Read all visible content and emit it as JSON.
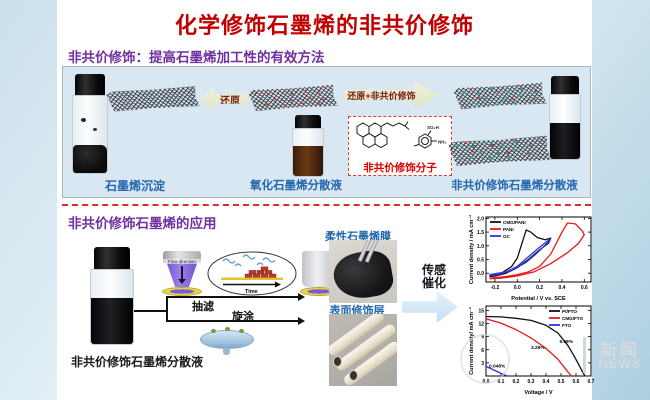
{
  "title": "化学修饰石墨烯的非共价修饰",
  "section1": {
    "heading": "非共价修饰：提高石墨烯加工性的有效方法",
    "arrow_left_label": "还原",
    "arrow_right_label": "还原+非共价修饰",
    "molecule_box_label": "非共价修饰分子",
    "molecule_labels": [
      "SO₃H",
      "NH₂"
    ],
    "caption_graphene_precipitate": "石墨烯沉淀",
    "caption_go_dispersion": "氧化石墨烯分散液",
    "caption_modified_dispersion": "非共价修饰石墨烯分散液"
  },
  "section2": {
    "heading": "非共价修饰石墨烯的应用",
    "caption_dispersion": "非共价修饰石墨烯分散液",
    "flow_direction_label": "Flow direction",
    "time_label": "Time",
    "filtration_label": "抽滤",
    "spincoat_label": "旋涂",
    "film_label": "柔性石墨烯膜",
    "surface_label": "表面修饰层",
    "arrow_label_line1": "传感",
    "arrow_label_line2": "催化"
  },
  "watermark": {
    "cn": "新闻",
    "en": "NEWS"
  },
  "colors": {
    "title_red": "#c00000",
    "heading_purple": "#7030a0",
    "caption_blue": "#2367ae",
    "molecule_red": "#e00000",
    "arrow_text_maroon": "#7a1d12",
    "panel_blue": "#d8e7f1",
    "separator_red": "#e02b2b",
    "chart_black": "#111111",
    "chart_red": "#e8191c",
    "chart_blue": "#2b35d8"
  },
  "chart_data": [
    {
      "type": "line",
      "xlabel": "Potential / V vs. SCE",
      "ylabel": "Current density / mA cm⁻²",
      "xlim": [
        -0.28,
        0.66
      ],
      "ylim": [
        -0.32,
        2.05
      ],
      "xticks": [
        -0.2,
        0.0,
        0.2,
        0.4,
        0.6
      ],
      "xtick_labels": [
        "-0.2",
        "0.0",
        "0.2",
        "0.4",
        "0.6"
      ],
      "yticks": [
        0.0,
        0.5,
        1.0,
        1.5,
        2.0
      ],
      "ytick_labels": [
        "0.0",
        "0.5",
        "1.0",
        "1.5",
        "2.0"
      ],
      "grid": false,
      "legend_pos": "tl",
      "series": [
        {
          "name": "CMG/PANI",
          "color": "#111111",
          "points": [
            [
              -0.25,
              -0.08
            ],
            [
              -0.15,
              -0.02
            ],
            [
              -0.05,
              0.25
            ],
            [
              0.0,
              0.55
            ],
            [
              0.05,
              1.2
            ],
            [
              0.08,
              1.58
            ],
            [
              0.12,
              1.5
            ],
            [
              0.18,
              1.3
            ],
            [
              0.25,
              1.22
            ],
            [
              0.3,
              1.28
            ],
            [
              0.28,
              1.1
            ],
            [
              0.2,
              0.85
            ],
            [
              0.1,
              0.5
            ],
            [
              0.0,
              0.2
            ],
            [
              -0.1,
              0.0
            ],
            [
              -0.2,
              -0.1
            ],
            [
              -0.25,
              -0.12
            ]
          ]
        },
        {
          "name": "PANI",
          "color": "#e8191c",
          "points": [
            [
              -0.25,
              -0.18
            ],
            [
              -0.1,
              -0.12
            ],
            [
              0.0,
              -0.05
            ],
            [
              0.1,
              0.05
            ],
            [
              0.2,
              0.25
            ],
            [
              0.3,
              0.7
            ],
            [
              0.4,
              1.5
            ],
            [
              0.45,
              1.83
            ],
            [
              0.52,
              1.8
            ],
            [
              0.58,
              1.55
            ],
            [
              0.6,
              1.4
            ],
            [
              0.55,
              1.1
            ],
            [
              0.45,
              0.75
            ],
            [
              0.3,
              0.35
            ],
            [
              0.15,
              0.05
            ],
            [
              0.0,
              -0.1
            ],
            [
              -0.15,
              -0.18
            ],
            [
              -0.25,
              -0.2
            ]
          ]
        },
        {
          "name": "GC",
          "color": "#2b35d8",
          "points": [
            [
              -0.25,
              -0.05
            ],
            [
              -0.1,
              0.05
            ],
            [
              0.0,
              0.25
            ],
            [
              0.1,
              0.6
            ],
            [
              0.2,
              0.95
            ],
            [
              0.3,
              1.27
            ],
            [
              0.28,
              1.15
            ],
            [
              0.18,
              0.75
            ],
            [
              0.08,
              0.4
            ],
            [
              -0.05,
              0.1
            ],
            [
              -0.18,
              -0.05
            ],
            [
              -0.25,
              -0.08
            ]
          ]
        }
      ],
      "annotations": []
    },
    {
      "type": "line",
      "xlabel": "Voltage / V",
      "ylabel": "Current density/ mA cm⁻²",
      "xlim": [
        0.0,
        0.7
      ],
      "ylim": [
        0,
        16
      ],
      "xticks": [
        0.0,
        0.1,
        0.2,
        0.3,
        0.4,
        0.5,
        0.6,
        0.7
      ],
      "xtick_labels": [
        "0.0",
        "0.1",
        "0.2",
        "0.3",
        "0.4",
        "0.5",
        "0.6",
        "0.7"
      ],
      "yticks": [
        3,
        6,
        9,
        12,
        15
      ],
      "ytick_labels": [
        "3",
        "6",
        "9",
        "12",
        "15"
      ],
      "grid": false,
      "legend_pos": "tr",
      "series": [
        {
          "name": "Pt/FTO",
          "color": "#111111",
          "points": [
            [
              0,
              13.6
            ],
            [
              0.1,
              13.5
            ],
            [
              0.2,
              13.2
            ],
            [
              0.3,
              12.7
            ],
            [
              0.4,
              11.6
            ],
            [
              0.48,
              9.8
            ],
            [
              0.55,
              6.8
            ],
            [
              0.6,
              3.8
            ],
            [
              0.64,
              1.2
            ],
            [
              0.66,
              0
            ]
          ]
        },
        {
          "name": "CMG/FTO",
          "color": "#e8191c",
          "points": [
            [
              0,
              13.1
            ],
            [
              0.1,
              12.1
            ],
            [
              0.2,
              10.6
            ],
            [
              0.3,
              8.7
            ],
            [
              0.4,
              6.3
            ],
            [
              0.48,
              3.8
            ],
            [
              0.54,
              1.2
            ],
            [
              0.57,
              0
            ]
          ]
        },
        {
          "name": "FTO",
          "color": "#2b35d8",
          "points": [
            [
              0,
              2.2
            ],
            [
              0.05,
              1.4
            ],
            [
              0.1,
              0.6
            ],
            [
              0.14,
              0.05
            ]
          ]
        }
      ],
      "annotations": [
        {
          "text": "5.98%",
          "x": 0.49,
          "y": 7.5
        },
        {
          "text": "3.29%",
          "x": 0.3,
          "y": 6.2
        },
        {
          "text": "0.048%",
          "x": 0.02,
          "y": 1.9
        }
      ]
    }
  ]
}
